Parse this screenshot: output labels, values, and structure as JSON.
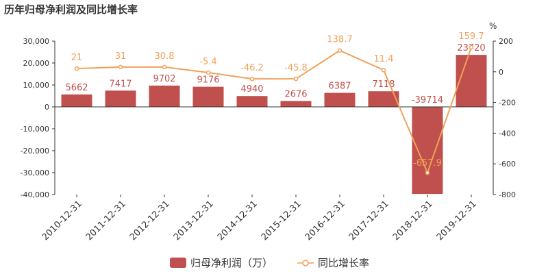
{
  "title": "历年归母净利润及同比增长率",
  "chart_data": {
    "type": "bar",
    "categories": [
      "2010-12-31",
      "2011-12-31",
      "2012-12-31",
      "2013-12-31",
      "2014-12-31",
      "2015-12-31",
      "2016-12-31",
      "2017-12-31",
      "2018-12-31",
      "2019-12-31"
    ],
    "series": [
      {
        "name": "归母净利润（万）",
        "type": "bar",
        "axis": "left",
        "values": [
          5662,
          7417,
          9702,
          9176,
          4940,
          2676,
          6387,
          7118,
          -39714,
          23720
        ]
      },
      {
        "name": "同比增长率",
        "type": "line",
        "axis": "right",
        "values": [
          21,
          31,
          30.8,
          -5.4,
          -46.2,
          -45.8,
          138.7,
          11.4,
          -657.9,
          159.7
        ]
      }
    ],
    "y_left": {
      "ylim": [
        -40000,
        30000
      ],
      "ticks": [
        "30,000",
        "20,000",
        "10,000",
        "0",
        "-10,000",
        "-20,000",
        "-30,000",
        "-40,000"
      ]
    },
    "y_right": {
      "ylim": [
        -800,
        200
      ],
      "unit": "%",
      "ticks": [
        "200",
        "0",
        "-200",
        "-400",
        "-600",
        "-800"
      ]
    },
    "colors": {
      "bar": "#c0504d",
      "line": "#f0a057"
    },
    "legend_position": "bottom",
    "grid": false
  }
}
